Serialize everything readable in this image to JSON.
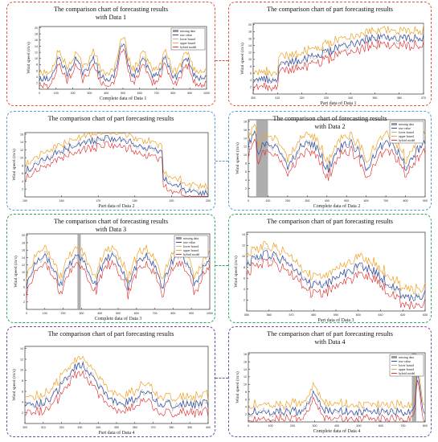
{
  "colors": {
    "row1": "#e8543c",
    "row2": "#5a9bd5",
    "row3": "#2eaa60",
    "row4": "#6b4fa8",
    "true_value": "#1a3a9c",
    "lower_bound": "#a8a8a8",
    "upper_bound": "#f0a020",
    "hybrid_model": "#e02020",
    "missing": "#9a9a9a"
  },
  "legend_labels": [
    "missing data",
    "true value",
    "lower bound",
    "upper bound",
    "hybrid model"
  ],
  "chart_data": [
    {
      "id": "p1",
      "type": "line",
      "title_lines": [
        "The comparison chart of forecasting results",
        "with Data 1"
      ],
      "xlabel": "Complete data of Data 1",
      "ylabel": "Wind speed (m/s)",
      "xticks": [
        "0",
        "100",
        "200",
        "300",
        "400",
        "500",
        "600",
        "700",
        "800",
        "900",
        "1000"
      ],
      "yticks": [
        "2",
        "4",
        "6",
        "8",
        "10",
        "12",
        "14",
        "16",
        "18",
        "20"
      ],
      "xlim": [
        0,
        1000
      ],
      "ylim": [
        0,
        20
      ],
      "legend": true,
      "missing_range": []
    },
    {
      "id": "p2",
      "type": "line",
      "title_lines": [
        "The comparison chart of part forecasting results"
      ],
      "xlabel": "Part data of Data 1",
      "ylabel": "Wind speed (m/s)",
      "xticks": [
        "300",
        "310",
        "320",
        "330",
        "340",
        "350",
        "360",
        "370"
      ],
      "yticks": [
        "2",
        "4",
        "6",
        "8",
        "10",
        "12",
        "14",
        "16",
        "18",
        "20"
      ],
      "xlim": [
        300,
        370
      ],
      "ylim": [
        0,
        20
      ],
      "legend": false,
      "missing_range": []
    },
    {
      "id": "p3",
      "type": "line",
      "title_lines": [
        "The comparison chart of part forecasting results"
      ],
      "xlabel": "Part data of Data 2",
      "ylabel": "Wind speed (m/s)",
      "xticks": [
        "150",
        "160",
        "170",
        "180",
        "190",
        "200"
      ],
      "yticks": [
        "2",
        "4",
        "6",
        "8",
        "10",
        "12",
        "14",
        "16"
      ],
      "xlim": [
        150,
        200
      ],
      "ylim": [
        0,
        16
      ],
      "legend": false,
      "missing_range": []
    },
    {
      "id": "p4",
      "type": "line",
      "title_lines": [
        "The comparison chart of forecasting results",
        "with Data 2"
      ],
      "xlabel": "Complete data of Data 2",
      "ylabel": "Wind speed (m/s)",
      "xticks": [
        "0",
        "100",
        "200",
        "300",
        "400",
        "500",
        "600",
        "700",
        "800",
        "900"
      ],
      "yticks": [
        "2",
        "4",
        "6",
        "8",
        "10",
        "12",
        "14",
        "16",
        "18"
      ],
      "xlim": [
        0,
        900
      ],
      "ylim": [
        0,
        18
      ],
      "legend": true,
      "missing_range": [
        40,
        100
      ]
    },
    {
      "id": "p5",
      "type": "line",
      "title_lines": [
        "The comparison chart  of forecasting results",
        "with Data 3"
      ],
      "xlabel": "Complete data of Data 3",
      "ylabel": "Wind speed (m/s)",
      "xticks": [
        "0",
        "100",
        "200",
        "300",
        "400",
        "500",
        "600",
        "700",
        "800",
        "900",
        "1000"
      ],
      "yticks": [
        "2",
        "4",
        "6",
        "8",
        "10",
        "12",
        "14",
        "16",
        "18",
        "20"
      ],
      "xlim": [
        0,
        1000
      ],
      "ylim": [
        0,
        20
      ],
      "legend": true,
      "missing_range": [
        278,
        296
      ]
    },
    {
      "id": "p6",
      "type": "line",
      "title_lines": [
        "The comparison chart of part forecasting results"
      ],
      "xlabel": "Part data of Data 3",
      "ylabel": "Wind speed (m/s)",
      "xticks": [
        "550",
        "560",
        "570",
        "580",
        "590",
        "600",
        "610",
        "620",
        "630"
      ],
      "yticks": [
        "2",
        "4",
        "6",
        "8",
        "10",
        "12",
        "14"
      ],
      "xlim": [
        550,
        630
      ],
      "ylim": [
        0,
        14
      ],
      "legend": false,
      "missing_range": []
    },
    {
      "id": "p7",
      "type": "line",
      "title_lines": [
        "The comparison chart of part forecasting results"
      ],
      "xlabel": "Part data of Data 4",
      "ylabel": "Wind speed (m/s)",
      "xticks": [
        "300",
        "310",
        "320",
        "330",
        "340",
        "350",
        "360",
        "370",
        "380",
        "390",
        "400"
      ],
      "yticks": [
        "2",
        "4",
        "6",
        "8",
        "10",
        "12",
        "14"
      ],
      "xlim": [
        300,
        400
      ],
      "ylim": [
        0,
        14
      ],
      "legend": false,
      "missing_range": []
    },
    {
      "id": "p8",
      "type": "line",
      "title_lines": [
        "The comparison chart  of part forecasting results",
        "with Data 4"
      ],
      "xlabel": "Complete data of Data 4",
      "ylabel": "Wind speed (m/s)",
      "xticks": [
        "0",
        "100",
        "200",
        "300",
        "400",
        "500",
        "600",
        "700",
        "800"
      ],
      "yticks": [
        "2",
        "4",
        "6",
        "8",
        "10",
        "12",
        "14",
        "16",
        "18"
      ],
      "xlim": [
        0,
        800
      ],
      "ylim": [
        0,
        18
      ],
      "legend": true,
      "missing_range": [
        740,
        760
      ]
    }
  ]
}
